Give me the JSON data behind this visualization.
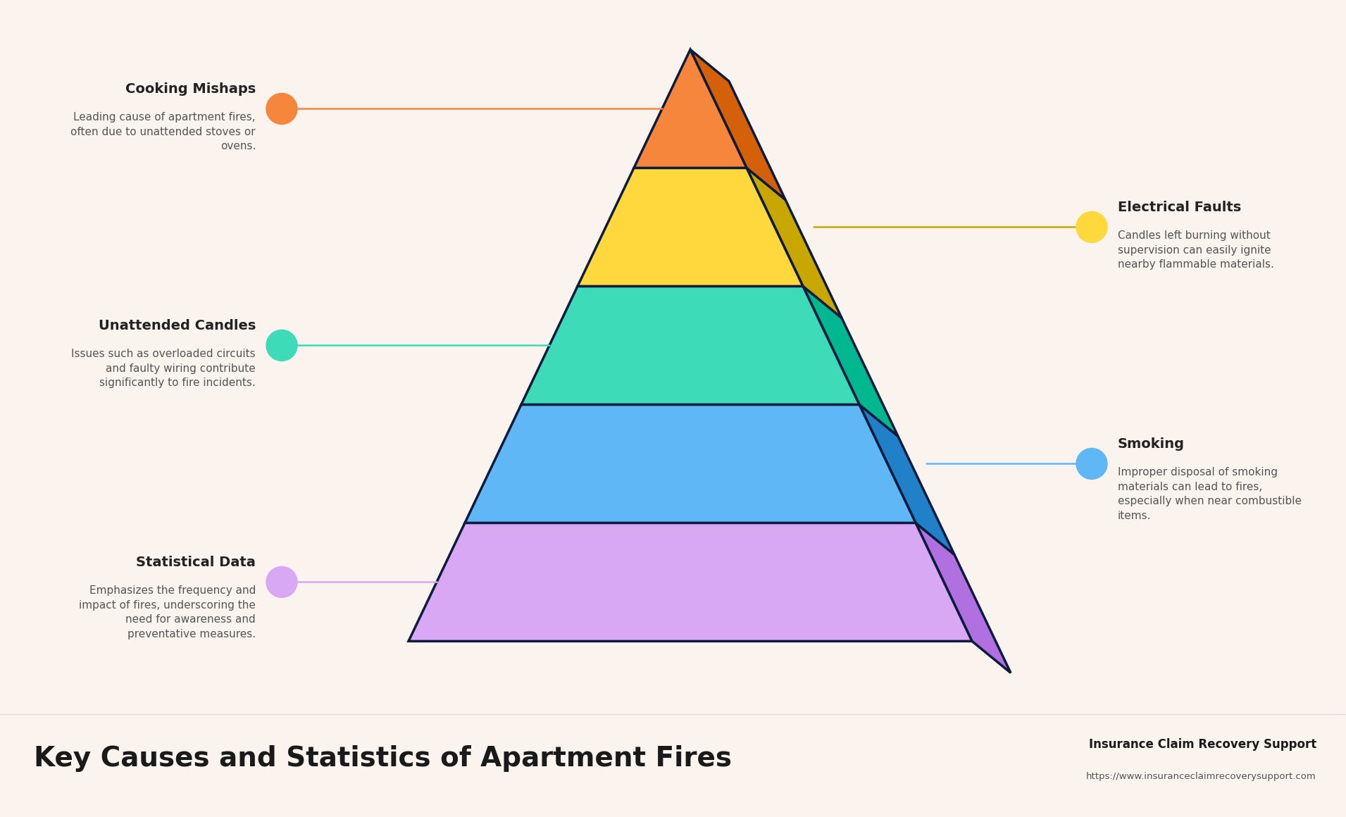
{
  "background_color": "#faf3ee",
  "footer_bg": "#ffffff",
  "pyramid_layers": [
    {
      "color": "#f5863c",
      "dark_color": "#d4600a",
      "label": "Cooking Mishaps"
    },
    {
      "color": "#ffd83d",
      "dark_color": "#c8a800",
      "label": "Electrical Faults"
    },
    {
      "color": "#3ddbb8",
      "dark_color": "#00b890",
      "label": "Unattended Candles"
    },
    {
      "color": "#5fb8f5",
      "dark_color": "#2080c8",
      "label": "Smoking"
    },
    {
      "color": "#d8a8f5",
      "dark_color": "#b070e0",
      "label": "Statistical Data"
    }
  ],
  "border_color": "#0d1b3e",
  "left_annotations": [
    {
      "title": "Cooking Mishaps",
      "text": "Leading cause of apartment fires,\noften due to unattended stoves or\novens.",
      "dot_color": "#f5863c",
      "line_color": "#f5863c",
      "layer": 0
    },
    {
      "title": "Unattended Candles",
      "text": "Issues such as overloaded circuits\nand faulty wiring contribute\nsignificantly to fire incidents.",
      "dot_color": "#3ddbb8",
      "line_color": "#3ddbb8",
      "layer": 2
    },
    {
      "title": "Statistical Data",
      "text": "Emphasizes the frequency and\nimpact of fires, underscoring the\nneed for awareness and\npreventative measures.",
      "dot_color": "#d8a8f5",
      "line_color": "#d8a8f5",
      "layer": 4
    }
  ],
  "right_annotations": [
    {
      "title": "Electrical Faults",
      "text": "Candles left burning without\nsupervision can easily ignite\nnearby flammable materials.",
      "dot_color": "#ffd83d",
      "line_color": "#c8a800",
      "layer": 1
    },
    {
      "title": "Smoking",
      "text": "Improper disposal of smoking\nmaterials can lead to fires,\nespecially when near combustible\nitems.",
      "dot_color": "#5fb8f5",
      "line_color": "#5fb8f5",
      "layer": 3
    }
  ],
  "title": "Key Causes and Statistics of Apartment Fires",
  "brand": "Insurance Claim Recovery Support",
  "url": "https://www.insuranceclaimrecoverysupport.com",
  "title_fontsize": 28,
  "annotation_title_fontsize": 14,
  "annotation_text_fontsize": 11
}
